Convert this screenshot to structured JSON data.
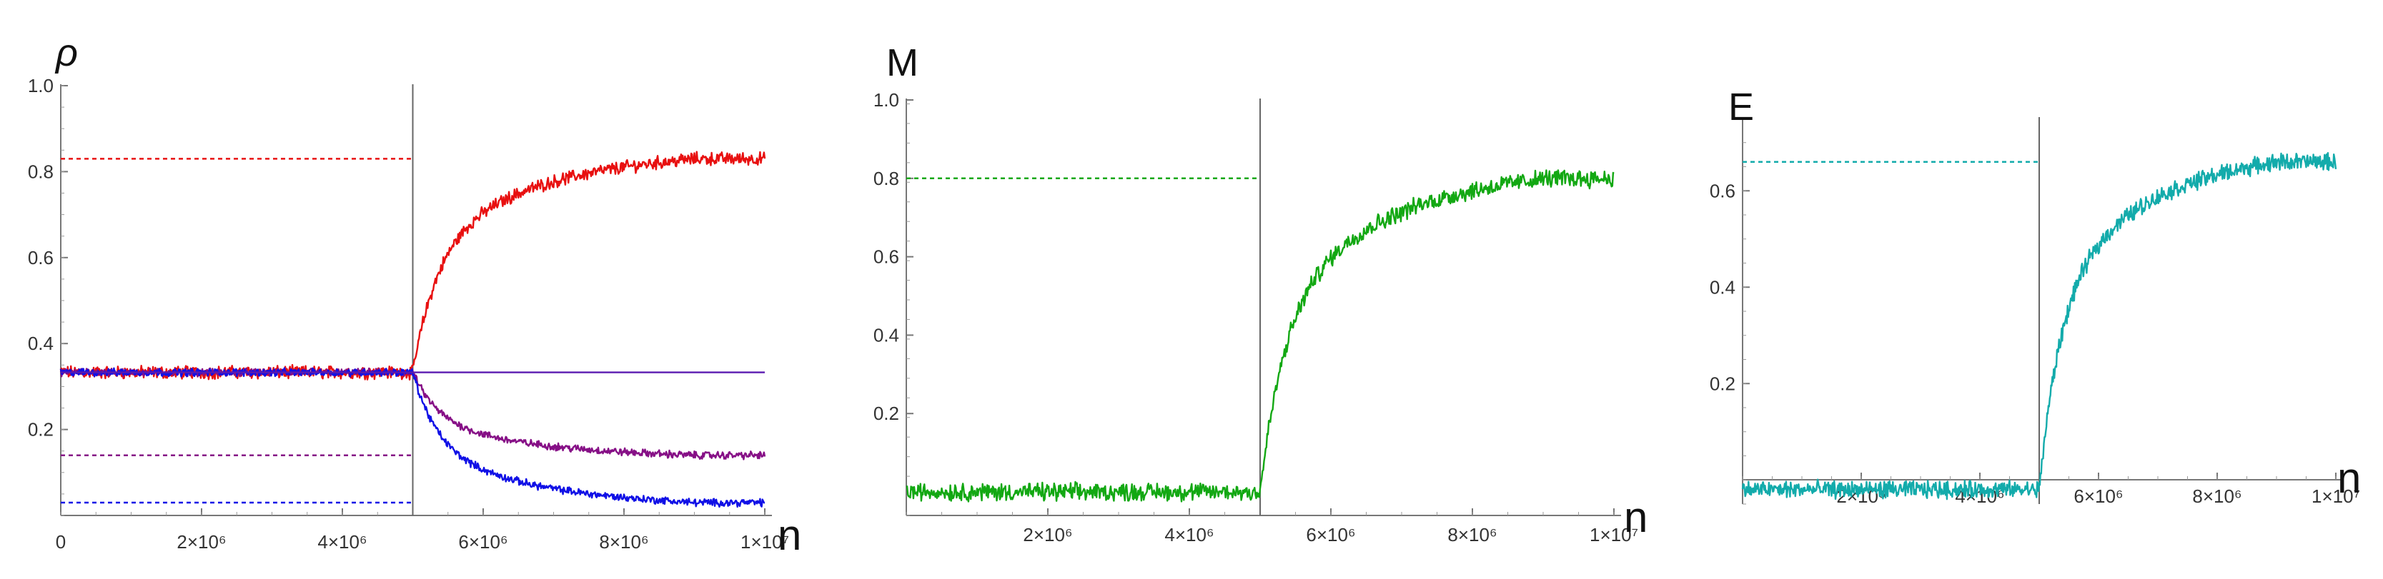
{
  "chart_data": [
    {
      "type": "line",
      "ylabel": "ρ",
      "xlabel": "n",
      "xlim": [
        0,
        10000000
      ],
      "ylim": [
        0,
        1.0
      ],
      "x_ticks": [
        0,
        2000000,
        4000000,
        6000000,
        8000000,
        10000000
      ],
      "x_tick_labels": [
        "0",
        "2×10⁶",
        "4×10⁶",
        "6×10⁶",
        "8×10⁶",
        "1×10⁷"
      ],
      "y_ticks": [
        0.2,
        0.4,
        0.6,
        0.8,
        1.0
      ],
      "y_tick_labels": [
        "0.2",
        "0.4",
        "0.6",
        "0.8",
        "1.0"
      ],
      "vertical_line_x": 5000000,
      "series": [
        {
          "color": "#e81010",
          "start": 0.333,
          "end": 0.83,
          "reference": 0.83,
          "noise": 0.012
        },
        {
          "color": "#860f86",
          "start": 0.333,
          "end": 0.14,
          "reference": 0.14,
          "noise": 0.007
        },
        {
          "color": "#1010e6",
          "start": 0.333,
          "end": 0.03,
          "reference": 0.03,
          "noise": 0.007
        },
        {
          "color": "#5a1ab0",
          "constant": 0.333
        }
      ]
    },
    {
      "type": "line",
      "ylabel": "M",
      "xlabel": "n",
      "xlim": [
        0,
        10000000
      ],
      "ylim": [
        -0.06,
        1.0
      ],
      "x_ticks": [
        2000000,
        4000000,
        6000000,
        8000000,
        10000000
      ],
      "x_tick_labels": [
        "2×10⁶",
        "4×10⁶",
        "6×10⁶",
        "8×10⁶",
        "1×10⁷"
      ],
      "y_ticks": [
        0.2,
        0.4,
        0.6,
        0.8,
        1.0
      ],
      "y_tick_labels": [
        "0.2",
        "0.4",
        "0.6",
        "0.8",
        "1.0"
      ],
      "vertical_line_x": 5000000,
      "series": [
        {
          "color": "#13a813",
          "start": 0.0,
          "end": 0.8,
          "reference": 0.8,
          "noise": 0.018
        }
      ]
    },
    {
      "type": "line",
      "ylabel": "E",
      "xlabel": "n",
      "xlim": [
        0,
        10000000
      ],
      "ylim": [
        -0.05,
        0.75
      ],
      "x_ticks": [
        2000000,
        4000000,
        6000000,
        8000000,
        10000000
      ],
      "x_tick_labels": [
        "2×10⁶",
        "4×10⁶",
        "6×10⁶",
        "8×10⁶",
        "1×10⁷"
      ],
      "y_ticks": [
        0.2,
        0.4,
        0.6
      ],
      "y_tick_labels": [
        "0.2",
        "0.4",
        "0.6"
      ],
      "vertical_line_x": 5000000,
      "series": [
        {
          "color": "#13abab",
          "start": -0.02,
          "end": 0.66,
          "reference": 0.66,
          "noise": 0.014
        }
      ]
    }
  ]
}
